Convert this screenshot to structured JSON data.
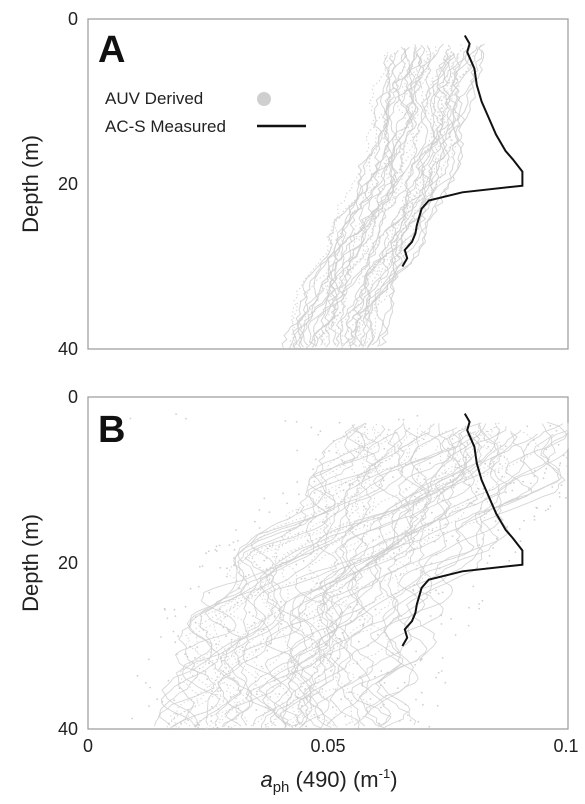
{
  "colors": {
    "auv": "#cfcfcf",
    "acs": "#111111",
    "frame": "#9a9a9a",
    "text": "#222222"
  },
  "chart_data": [
    {
      "type": "line",
      "panel_label": "A",
      "ylabel": "Depth (m)",
      "xlabel": "",
      "xlim": [
        0,
        0.1
      ],
      "ylim": [
        0,
        40
      ],
      "y_inverted": true,
      "yticks": [
        "0",
        "20",
        "40"
      ],
      "xticks": [],
      "grid": false,
      "legend": {
        "position": "top-left",
        "entries": [
          {
            "label": "AUV Derived",
            "marker": "circle",
            "color": "#cfcfcf"
          },
          {
            "label": "AC-S Measured",
            "marker": "line",
            "color": "#111111"
          }
        ]
      },
      "series": [
        {
          "name": "AC-S Measured",
          "color": "#111111",
          "points": [
            [
              0.0785,
              2
            ],
            [
              0.0795,
              3
            ],
            [
              0.079,
              4
            ],
            [
              0.0805,
              6
            ],
            [
              0.081,
              8
            ],
            [
              0.082,
              10
            ],
            [
              0.0835,
              12
            ],
            [
              0.085,
              14
            ],
            [
              0.087,
              16
            ],
            [
              0.0885,
              17
            ],
            [
              0.0905,
              18.5
            ],
            [
              0.0905,
              20.2
            ],
            [
              0.078,
              21
            ],
            [
              0.071,
              22
            ],
            [
              0.0695,
              23
            ],
            [
              0.069,
              24
            ],
            [
              0.0685,
              25
            ],
            [
              0.0682,
              26
            ],
            [
              0.0675,
              27
            ],
            [
              0.066,
              28
            ],
            [
              0.0665,
              29
            ],
            [
              0.0655,
              30
            ]
          ]
        },
        {
          "name": "AUV Derived",
          "color": "#cfcfcf",
          "envelope": [
            [
              0.073,
              3
            ],
            [
              0.07,
              8
            ],
            [
              0.0695,
              12
            ],
            [
              0.068,
              16
            ],
            [
              0.0655,
              20
            ],
            [
              0.062,
              24
            ],
            [
              0.0585,
              28
            ],
            [
              0.055,
              32
            ],
            [
              0.0525,
              36
            ],
            [
              0.0505,
              40
            ]
          ],
          "spread": 0.012,
          "profiles": 42
        }
      ]
    },
    {
      "type": "line",
      "panel_label": "B",
      "ylabel": "Depth (m)",
      "xlabel": "aph (490) (m-1)",
      "xlim": [
        0,
        0.1
      ],
      "ylim": [
        0,
        40
      ],
      "y_inverted": true,
      "yticks": [
        "0",
        "20",
        "40"
      ],
      "xticks": [
        "0",
        "0.05",
        "0.1"
      ],
      "grid": false,
      "series": [
        {
          "name": "AC-S Measured",
          "color": "#111111",
          "points": [
            [
              0.0785,
              2
            ],
            [
              0.0795,
              3
            ],
            [
              0.079,
              4
            ],
            [
              0.0805,
              6
            ],
            [
              0.081,
              8
            ],
            [
              0.082,
              10
            ],
            [
              0.0835,
              12
            ],
            [
              0.085,
              14
            ],
            [
              0.087,
              16
            ],
            [
              0.0885,
              17
            ],
            [
              0.0905,
              18.5
            ],
            [
              0.0905,
              20.2
            ],
            [
              0.078,
              21
            ],
            [
              0.071,
              22
            ],
            [
              0.0695,
              23
            ],
            [
              0.069,
              24
            ],
            [
              0.0685,
              25
            ],
            [
              0.0682,
              26
            ],
            [
              0.0675,
              27
            ],
            [
              0.066,
              28
            ],
            [
              0.0665,
              29
            ],
            [
              0.0655,
              30
            ]
          ]
        },
        {
          "name": "AUV Derived",
          "color": "#cfcfcf",
          "envelope": [
            [
              0.08,
              3
            ],
            [
              0.075,
              8
            ],
            [
              0.07,
              12
            ],
            [
              0.063,
              16
            ],
            [
              0.055,
              20
            ],
            [
              0.05,
              24
            ],
            [
              0.047,
              28
            ],
            [
              0.044,
              32
            ],
            [
              0.042,
              36
            ],
            [
              0.041,
              40
            ]
          ],
          "spread": 0.03,
          "profiles": 60
        }
      ]
    }
  ]
}
